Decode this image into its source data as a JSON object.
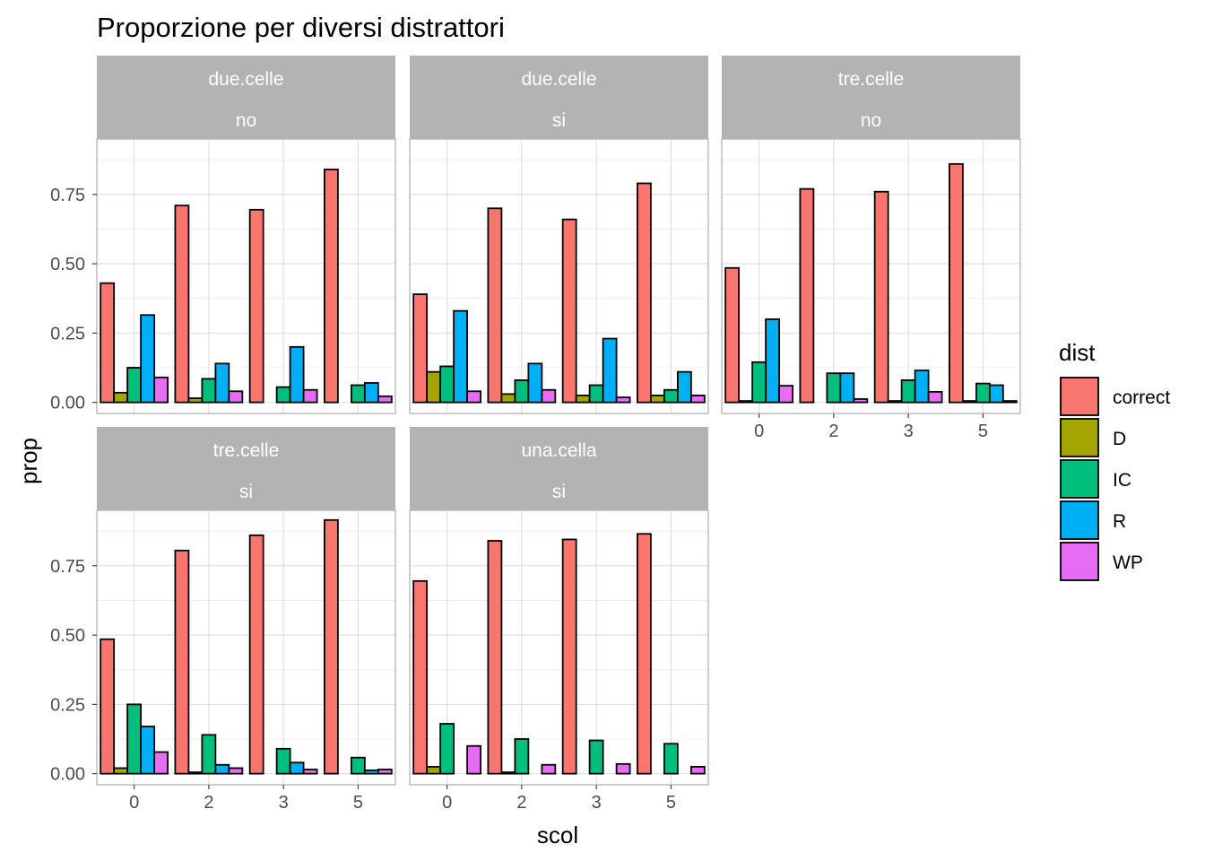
{
  "chart_data": {
    "type": "bar",
    "title": "Proporzione per diversi distrattori",
    "xlabel": "scol",
    "ylabel": "prop",
    "categories": [
      "0",
      "2",
      "3",
      "5"
    ],
    "y_ticks": [
      "0.00",
      "0.25",
      "0.50",
      "0.75"
    ],
    "ylim": [
      -0.04,
      0.95
    ],
    "grid": true,
    "legend": {
      "title": "dist",
      "position": "right",
      "entries": [
        {
          "name": "correct",
          "color": "#F8766D"
        },
        {
          "name": "D",
          "color": "#A3A500"
        },
        {
          "name": "IC",
          "color": "#00BF7D"
        },
        {
          "name": "R",
          "color": "#00B0F6"
        },
        {
          "name": "WP",
          "color": "#E76BF3"
        }
      ]
    },
    "panels": [
      {
        "strip": [
          "due.celle",
          "no"
        ],
        "series": [
          {
            "name": "correct",
            "values": [
              0.43,
              0.71,
              0.695,
              0.84
            ]
          },
          {
            "name": "D",
            "values": [
              0.035,
              0.015,
              0.0,
              0.0
            ]
          },
          {
            "name": "IC",
            "values": [
              0.125,
              0.085,
              0.055,
              0.062
            ]
          },
          {
            "name": "R",
            "values": [
              0.315,
              0.14,
              0.2,
              0.07
            ]
          },
          {
            "name": "WP",
            "values": [
              0.09,
              0.04,
              0.045,
              0.022
            ]
          }
        ]
      },
      {
        "strip": [
          "due.celle",
          "si"
        ],
        "series": [
          {
            "name": "correct",
            "values": [
              0.39,
              0.7,
              0.66,
              0.79
            ]
          },
          {
            "name": "D",
            "values": [
              0.11,
              0.03,
              0.025,
              0.025
            ]
          },
          {
            "name": "IC",
            "values": [
              0.13,
              0.08,
              0.062,
              0.045
            ]
          },
          {
            "name": "R",
            "values": [
              0.33,
              0.14,
              0.23,
              0.11
            ]
          },
          {
            "name": "WP",
            "values": [
              0.04,
              0.045,
              0.018,
              0.025
            ]
          }
        ]
      },
      {
        "strip": [
          "tre.celle",
          "no"
        ],
        "series": [
          {
            "name": "correct",
            "values": [
              0.485,
              0.77,
              0.76,
              0.86
            ]
          },
          {
            "name": "D",
            "values": [
              0.005,
              0.0,
              0.005,
              0.005
            ]
          },
          {
            "name": "IC",
            "values": [
              0.145,
              0.105,
              0.08,
              0.068
            ]
          },
          {
            "name": "R",
            "values": [
              0.3,
              0.105,
              0.115,
              0.062
            ]
          },
          {
            "name": "WP",
            "values": [
              0.06,
              0.012,
              0.038,
              0.005
            ]
          }
        ]
      },
      {
        "strip": [
          "tre.celle",
          "si"
        ],
        "series": [
          {
            "name": "correct",
            "values": [
              0.485,
              0.805,
              0.86,
              0.915
            ]
          },
          {
            "name": "D",
            "values": [
              0.02,
              0.005,
              0.0,
              0.0
            ]
          },
          {
            "name": "IC",
            "values": [
              0.25,
              0.14,
              0.09,
              0.058
            ]
          },
          {
            "name": "R",
            "values": [
              0.17,
              0.032,
              0.04,
              0.012
            ]
          },
          {
            "name": "WP",
            "values": [
              0.078,
              0.02,
              0.015,
              0.015
            ]
          }
        ]
      },
      {
        "strip": [
          "una.cella",
          "si"
        ],
        "series": [
          {
            "name": "correct",
            "values": [
              0.695,
              0.84,
              0.845,
              0.865
            ]
          },
          {
            "name": "D",
            "values": [
              0.025,
              0.005,
              0.0,
              0.0
            ]
          },
          {
            "name": "IC",
            "values": [
              0.18,
              0.125,
              0.12,
              0.108
            ]
          },
          {
            "name": "R",
            "values": [
              0.0,
              0.0,
              0.0,
              0.0
            ]
          },
          {
            "name": "WP",
            "values": [
              0.1,
              0.032,
              0.035,
              0.025
            ]
          }
        ]
      }
    ]
  }
}
